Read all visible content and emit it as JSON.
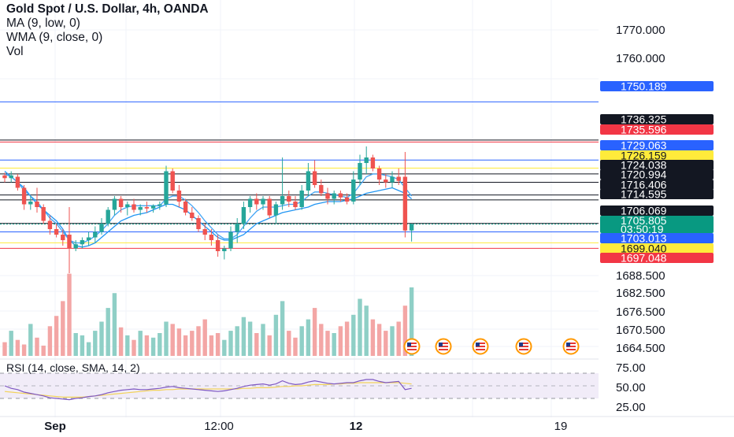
{
  "legend": {
    "symbol": "Gold Spot / U.S. Dollar, 4h, OANDA",
    "ma": "MA (9, low, 0)",
    "wma": "WMA (9, close, 0)",
    "vol": "Vol"
  },
  "rsi_label": "RSI (14, close, SMA, 14, 2)",
  "colors": {
    "up": "#26a69a",
    "down": "#ef5350",
    "vol_up": "#8fcfc6",
    "vol_down": "#f3a6a5",
    "ma": "#2196f3",
    "wma": "#42a5f5",
    "rsi": "#7e57c2",
    "rsi_ma": "#f2d35b",
    "rsi_band": "#ede7f6"
  },
  "chart_data": [
    {
      "type": "candlestick",
      "title": "Gold Spot / U.S. Dollar, 4h, OANDA",
      "x_ticks": [
        "Sep",
        "12:00",
        "12",
        "19"
      ],
      "y_ticks": [
        "1770.000",
        "1760.000",
        "1688.500",
        "1682.500",
        "1676.500",
        "1670.500",
        "1664.500"
      ],
      "candles": [
        {
          "o": 1723.5,
          "h": 1724.5,
          "l": 1721,
          "c": 1722.5
        },
        {
          "o": 1722.5,
          "h": 1725,
          "l": 1721,
          "c": 1723.5
        },
        {
          "o": 1723,
          "h": 1724,
          "l": 1718,
          "c": 1719
        },
        {
          "o": 1719,
          "h": 1720,
          "l": 1711,
          "c": 1713
        },
        {
          "o": 1713,
          "h": 1716,
          "l": 1711,
          "c": 1714
        },
        {
          "o": 1714,
          "h": 1719,
          "l": 1710,
          "c": 1712
        },
        {
          "o": 1712,
          "h": 1713,
          "l": 1706,
          "c": 1707
        },
        {
          "o": 1707,
          "h": 1709,
          "l": 1702,
          "c": 1704
        },
        {
          "o": 1704,
          "h": 1706,
          "l": 1701,
          "c": 1702
        },
        {
          "o": 1702,
          "h": 1704,
          "l": 1698,
          "c": 1700
        },
        {
          "o": 1702,
          "h": 1712,
          "l": 1688,
          "c": 1697
        },
        {
          "o": 1697,
          "h": 1700,
          "l": 1696,
          "c": 1698.5
        },
        {
          "o": 1698.5,
          "h": 1701,
          "l": 1697,
          "c": 1700
        },
        {
          "o": 1700,
          "h": 1703,
          "l": 1698,
          "c": 1701
        },
        {
          "o": 1701,
          "h": 1705,
          "l": 1699,
          "c": 1703
        },
        {
          "o": 1703,
          "h": 1708,
          "l": 1702,
          "c": 1706
        },
        {
          "o": 1706,
          "h": 1712,
          "l": 1705,
          "c": 1711
        },
        {
          "o": 1711,
          "h": 1716,
          "l": 1709,
          "c": 1715
        },
        {
          "o": 1715,
          "h": 1716,
          "l": 1710,
          "c": 1712
        },
        {
          "o": 1712,
          "h": 1714,
          "l": 1709,
          "c": 1713
        },
        {
          "o": 1713,
          "h": 1715,
          "l": 1710,
          "c": 1711
        },
        {
          "o": 1711,
          "h": 1713,
          "l": 1709,
          "c": 1712
        },
        {
          "o": 1712,
          "h": 1714,
          "l": 1710,
          "c": 1711.5
        },
        {
          "o": 1711.5,
          "h": 1713,
          "l": 1710,
          "c": 1712.5
        },
        {
          "o": 1712.5,
          "h": 1714,
          "l": 1711,
          "c": 1713
        },
        {
          "o": 1713,
          "h": 1727,
          "l": 1712,
          "c": 1725
        },
        {
          "o": 1725,
          "h": 1726,
          "l": 1717,
          "c": 1718
        },
        {
          "o": 1718,
          "h": 1720,
          "l": 1712,
          "c": 1714
        },
        {
          "o": 1714,
          "h": 1715,
          "l": 1709,
          "c": 1710
        },
        {
          "o": 1710,
          "h": 1712,
          "l": 1707,
          "c": 1708
        },
        {
          "o": 1708,
          "h": 1709,
          "l": 1703,
          "c": 1704
        },
        {
          "o": 1704,
          "h": 1706,
          "l": 1700,
          "c": 1702
        },
        {
          "o": 1702,
          "h": 1704,
          "l": 1698,
          "c": 1700
        },
        {
          "o": 1700,
          "h": 1702,
          "l": 1694,
          "c": 1696
        },
        {
          "o": 1696,
          "h": 1698,
          "l": 1693,
          "c": 1697
        },
        {
          "o": 1697,
          "h": 1705,
          "l": 1696,
          "c": 1703
        },
        {
          "o": 1703,
          "h": 1708,
          "l": 1699,
          "c": 1706
        },
        {
          "o": 1706,
          "h": 1714,
          "l": 1704,
          "c": 1712
        },
        {
          "o": 1712,
          "h": 1716,
          "l": 1710,
          "c": 1715
        },
        {
          "o": 1715,
          "h": 1717,
          "l": 1711,
          "c": 1713
        },
        {
          "o": 1713,
          "h": 1716,
          "l": 1711,
          "c": 1715
        },
        {
          "o": 1715,
          "h": 1716,
          "l": 1708,
          "c": 1709
        },
        {
          "o": 1709,
          "h": 1714,
          "l": 1706,
          "c": 1713
        },
        {
          "o": 1713,
          "h": 1730,
          "l": 1711,
          "c": 1716
        },
        {
          "o": 1716,
          "h": 1718,
          "l": 1712,
          "c": 1714
        },
        {
          "o": 1714,
          "h": 1716,
          "l": 1711,
          "c": 1712
        },
        {
          "o": 1712,
          "h": 1720,
          "l": 1711,
          "c": 1718
        },
        {
          "o": 1718,
          "h": 1728,
          "l": 1716,
          "c": 1725
        },
        {
          "o": 1725,
          "h": 1729,
          "l": 1719,
          "c": 1720
        },
        {
          "o": 1720,
          "h": 1722,
          "l": 1716,
          "c": 1717
        },
        {
          "o": 1717,
          "h": 1719,
          "l": 1713,
          "c": 1715
        },
        {
          "o": 1715,
          "h": 1718,
          "l": 1713,
          "c": 1717
        },
        {
          "o": 1717,
          "h": 1718,
          "l": 1714,
          "c": 1715.5
        },
        {
          "o": 1715.5,
          "h": 1717,
          "l": 1713,
          "c": 1714
        },
        {
          "o": 1714,
          "h": 1725,
          "l": 1713,
          "c": 1722
        },
        {
          "o": 1722,
          "h": 1731,
          "l": 1720,
          "c": 1728
        },
        {
          "o": 1728,
          "h": 1734,
          "l": 1724,
          "c": 1730
        },
        {
          "o": 1730,
          "h": 1731,
          "l": 1725,
          "c": 1726
        },
        {
          "o": 1726,
          "h": 1727,
          "l": 1720,
          "c": 1722
        },
        {
          "o": 1722,
          "h": 1724,
          "l": 1719,
          "c": 1721
        },
        {
          "o": 1721,
          "h": 1725,
          "l": 1719,
          "c": 1723
        },
        {
          "o": 1723,
          "h": 1726,
          "l": 1720,
          "c": 1721.5
        },
        {
          "o": 1723,
          "h": 1732,
          "l": 1701,
          "c": 1703.5
        },
        {
          "o": 1703.5,
          "h": 1706,
          "l": 1699.5,
          "c": 1705.8
        }
      ],
      "ma_9_low": [
        1725,
        1723,
        1721,
        1719,
        1716,
        1713,
        1711,
        1709,
        1707,
        1704,
        1700,
        1698,
        1697.5,
        1698,
        1699,
        1701,
        1703,
        1705,
        1707,
        1708,
        1709,
        1709.5,
        1710,
        1711,
        1712,
        1713,
        1713,
        1712,
        1711,
        1709,
        1707,
        1705,
        1703,
        1701,
        1700,
        1700,
        1701,
        1702,
        1704,
        1706,
        1707,
        1708,
        1709,
        1710,
        1710.5,
        1711,
        1711.5,
        1712,
        1713,
        1713.5,
        1714,
        1714,
        1714,
        1714.5,
        1715,
        1716,
        1717,
        1717.5,
        1718,
        1718.5,
        1719,
        1718,
        1717,
        1715
      ],
      "wma_9_close": [
        1724,
        1723,
        1721,
        1718,
        1716,
        1714,
        1711,
        1708,
        1706,
        1703,
        1700,
        1699,
        1699,
        1700,
        1701.5,
        1703.5,
        1706,
        1709,
        1711,
        1712,
        1712.5,
        1712.5,
        1712.5,
        1712.5,
        1712.5,
        1715,
        1716,
        1716,
        1714.5,
        1712.5,
        1710,
        1707,
        1704.5,
        1702,
        1700.5,
        1700.5,
        1702,
        1705,
        1708,
        1710.5,
        1712,
        1712,
        1712,
        1712.5,
        1713,
        1713,
        1714,
        1716,
        1717.5,
        1717.5,
        1717,
        1716.5,
        1716,
        1715.5,
        1717,
        1720,
        1723,
        1724,
        1724,
        1723.5,
        1723,
        1722,
        1719,
        1716
      ],
      "price_lines": [
        {
          "price": 1750.189,
          "label": "1750.189",
          "line": "#2962ff",
          "box": "#2962ff",
          "text": "#ffffff"
        },
        {
          "price": 1736.325,
          "label": "1736.325",
          "line": "#131722",
          "box": "#131722",
          "text": "#ffffff"
        },
        {
          "price": 1735.596,
          "label": "1735.596",
          "line": "#f23645",
          "box": "#f23645",
          "text": "#ffffff"
        },
        {
          "price": 1729.063,
          "label": "1729.063",
          "line": "#2962ff",
          "box": "#2962ff",
          "text": "#ffffff"
        },
        {
          "price": 1726.159,
          "label": "1726.159",
          "line": "#ffeb3b",
          "box": "#ffeb3b",
          "text": "#131722"
        },
        {
          "price": 1724.038,
          "label": "1724.038",
          "line": "#131722",
          "box": "#131722",
          "text": "#ffffff"
        },
        {
          "price": 1720.994,
          "label": "1720.994",
          "line": "#131722",
          "box": "#131722",
          "text": "#ffffff"
        },
        {
          "price": 1716.406,
          "label": "1716.406",
          "line": "#131722",
          "box": "#131722",
          "text": "#ffffff"
        },
        {
          "price": 1714.595,
          "label": "1714.595",
          "line": "#131722",
          "box": "#131722",
          "text": "#ffffff"
        },
        {
          "price": 1706.069,
          "label": "1706.069",
          "line": "#131722",
          "box": "#131722",
          "text": "#ffffff"
        },
        {
          "price": 1703.013,
          "label": "1703.013",
          "line": "#2962ff",
          "box": "#2962ff",
          "text": "#ffffff"
        },
        {
          "price": 1699.04,
          "label": "1699.040",
          "line": "#ffeb3b",
          "box": "#ffeb3b",
          "text": "#131722"
        },
        {
          "price": 1697.048,
          "label": "1697.048",
          "line": "#f23645",
          "box": "#f23645",
          "text": "#ffffff"
        }
      ],
      "current_price": {
        "price": 1705.805,
        "label": "1705.805",
        "countdown": "03:50:19",
        "color": "#089981"
      }
    },
    {
      "type": "bar",
      "title": "Vol",
      "volumes": [
        12,
        22,
        14,
        10,
        28,
        16,
        9,
        26,
        35,
        48,
        72,
        20,
        18,
        12,
        22,
        30,
        42,
        55,
        25,
        18,
        14,
        22,
        18,
        16,
        20,
        30,
        28,
        24,
        18,
        22,
        26,
        32,
        18,
        20,
        14,
        22,
        26,
        34,
        30,
        20,
        28,
        18,
        36,
        48,
        22,
        16,
        26,
        32,
        42,
        28,
        22,
        20,
        26,
        30,
        36,
        50,
        44,
        32,
        28,
        22,
        26,
        30,
        44,
        60
      ]
    },
    {
      "type": "line",
      "title": "RSI (14, close, SMA, 14, 2)",
      "y_ticks": [
        "75.00",
        "50.00",
        "25.00"
      ],
      "band": [
        30,
        70
      ],
      "rsi": [
        50,
        46,
        44,
        40,
        38,
        36,
        34,
        31,
        30,
        29,
        28,
        30,
        31,
        33,
        34,
        36,
        39,
        41,
        43,
        44,
        45,
        44,
        44,
        45,
        46,
        48,
        49,
        47,
        46,
        45,
        44,
        43,
        42,
        41,
        42,
        44,
        46,
        49,
        51,
        52,
        53,
        51,
        53,
        58,
        54,
        52,
        53,
        56,
        58,
        56,
        54,
        53,
        54,
        55,
        55,
        58,
        60,
        60,
        57,
        55,
        56,
        57,
        44,
        46
      ],
      "rsi_ma": [
        41,
        40,
        39,
        38,
        37,
        36,
        35,
        34,
        33,
        32,
        32,
        32,
        32,
        33,
        34,
        35,
        36,
        37,
        38,
        39,
        40,
        41,
        42,
        43,
        43,
        44,
        44,
        45,
        45,
        45,
        45,
        45,
        45,
        45,
        45,
        45,
        45,
        46,
        46,
        47,
        47,
        47,
        48,
        49,
        49,
        50,
        50,
        51,
        52,
        52,
        52,
        53,
        53,
        54,
        54,
        55,
        55,
        55,
        55,
        55,
        55,
        55,
        54,
        53
      ]
    }
  ]
}
